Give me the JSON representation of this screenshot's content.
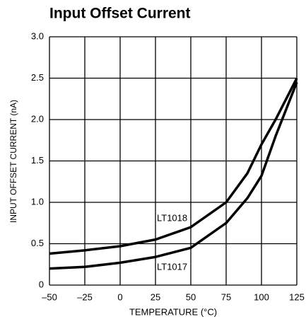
{
  "chart_data": {
    "type": "line",
    "title": "Input Offset Current",
    "x_label": "TEMPERATURE (°C)",
    "y_label": "INPUT OFFSET CURRENT (nA)",
    "x": [
      -50,
      -25,
      0,
      25,
      50,
      75,
      90,
      100,
      110,
      125
    ],
    "series": [
      {
        "name": "LT1018",
        "color": "#000000",
        "values": [
          0.38,
          0.42,
          0.47,
          0.55,
          0.7,
          1.0,
          1.35,
          1.7,
          2.0,
          2.5
        ]
      },
      {
        "name": "LT1017",
        "color": "#000000",
        "values": [
          0.2,
          0.22,
          0.27,
          0.34,
          0.45,
          0.75,
          1.05,
          1.32,
          1.8,
          2.45
        ]
      }
    ],
    "xlim": [
      -50,
      125
    ],
    "xticks": [
      {
        "value": -50,
        "label": "–50"
      },
      {
        "value": -25,
        "label": "–25"
      },
      0,
      25,
      50,
      75,
      100,
      125
    ],
    "ylim": [
      0,
      3
    ],
    "yticks": [
      0,
      {
        "value": 0.5,
        "label": "0.5"
      },
      {
        "value": 1,
        "label": "1.0"
      },
      {
        "value": 1.5,
        "label": "1.5"
      },
      {
        "value": 2,
        "label": "2.0"
      },
      {
        "value": 2.5,
        "label": "2.5"
      },
      {
        "value": 3,
        "label": "3.0"
      }
    ],
    "grid": true
  }
}
